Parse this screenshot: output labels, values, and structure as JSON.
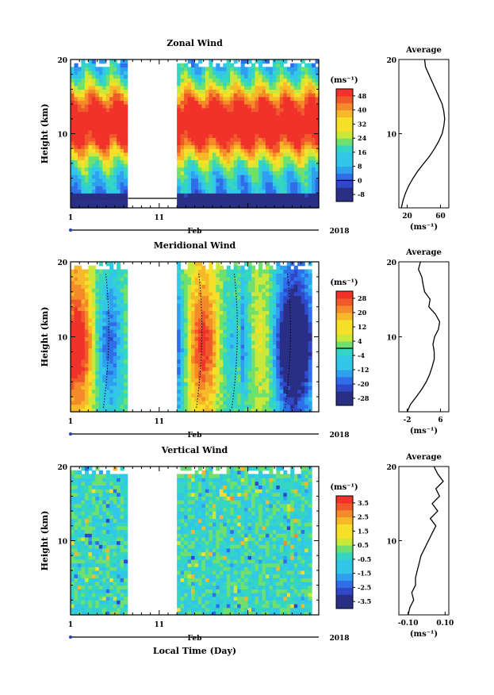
{
  "colors": {
    "palette": [
      "#2a2f86",
      "#3048c8",
      "#2f6ee8",
      "#2f9ff0",
      "#32c7e8",
      "#34d6c2",
      "#6fe06e",
      "#c9e83a",
      "#f6e02a",
      "#f7b82a",
      "#f48a28",
      "#f05a2a",
      "#f0322a"
    ],
    "missing": "#ffffff",
    "contour": "#000000"
  },
  "xaxis_common": {
    "tick_labels": [
      "1",
      "11"
    ],
    "month": "Feb",
    "year": "2018"
  },
  "xlabel_bottom": "Local Time (Day)",
  "colorbar_unit": "(ms⁻¹)",
  "profile_title": "Average",
  "chart_data": [
    {
      "type": "heatmap",
      "title": "Zonal Wind",
      "ylabel": "Height (km)",
      "ylim": [
        0,
        20
      ],
      "yticks": [
        "20",
        "10"
      ],
      "x_range_days": [
        1,
        29
      ],
      "data_gap_days": [
        7.5,
        13
      ],
      "colorbar": {
        "labels": [
          "48",
          "40",
          "32",
          "24",
          "16",
          "8",
          "0",
          "-8"
        ],
        "range": [
          -12,
          52
        ],
        "zero_line": 0
      },
      "description_values": {
        "jet_core_ms": 52,
        "surface_ms": 0,
        "top_ms": 20
      }
    },
    {
      "type": "line",
      "title": "Average",
      "xlabel": "(ms⁻¹)",
      "xticks": [
        "20",
        "60"
      ],
      "xlim": [
        10,
        70
      ],
      "ylim": [
        0,
        20
      ],
      "yticks": [
        "20",
        "10"
      ],
      "x": [
        13,
        15,
        18,
        22,
        27,
        33,
        40,
        47,
        53,
        58,
        62,
        64,
        65,
        64,
        62,
        58,
        54,
        50,
        46,
        42,
        41
      ],
      "y": [
        0,
        1,
        2,
        3,
        4,
        5,
        6,
        7,
        8,
        9,
        10,
        11,
        12,
        13,
        14,
        15,
        16,
        17,
        18,
        19,
        20
      ]
    },
    {
      "type": "heatmap",
      "title": "Meridional Wind",
      "ylabel": "Height (km)",
      "ylim": [
        0,
        20
      ],
      "yticks": [
        "20",
        "10"
      ],
      "x_range_days": [
        1,
        29
      ],
      "data_gap_days": [
        7.5,
        13
      ],
      "colorbar": {
        "labels": [
          "28",
          "20",
          "12",
          "4",
          "-4",
          "-12",
          "-20",
          "-28"
        ],
        "range": [
          -32,
          32
        ],
        "zero_line": 0
      }
    },
    {
      "type": "line",
      "title": "Average",
      "xlabel": "(ms⁻¹)",
      "xticks": [
        "-2",
        "6"
      ],
      "xlim": [
        -4,
        8
      ],
      "ylim": [
        0,
        20
      ],
      "yticks": [
        "20",
        "10"
      ],
      "x": [
        -2.0,
        -1.2,
        0.2,
        1.5,
        2.6,
        3.4,
        4.0,
        4.5,
        4.5,
        4.2,
        4.6,
        5.5,
        5.8,
        4.8,
        3.2,
        3.5,
        2.2,
        1.8,
        1.5,
        0.7,
        1.2
      ],
      "y": [
        0,
        1,
        2,
        3,
        4,
        5,
        6,
        7,
        8,
        9,
        10,
        11,
        12,
        13,
        14,
        15,
        16,
        17,
        18,
        19,
        20
      ]
    },
    {
      "type": "heatmap",
      "title": "Vertical Wind",
      "ylabel": "Height (km)",
      "ylim": [
        0,
        20
      ],
      "yticks": [
        "20",
        "10"
      ],
      "x_range_days": [
        1,
        29
      ],
      "data_gap_days": [
        7.5,
        13
      ],
      "colorbar": {
        "labels": [
          "3.5",
          "2.5",
          "1.5",
          "0.5",
          "-0.5",
          "-1.5",
          "-2.5",
          "-3.5"
        ],
        "range": [
          -4,
          4
        ]
      }
    },
    {
      "type": "line",
      "title": "Average",
      "xlabel": "(ms⁻¹)",
      "xticks": [
        "-0.10",
        "0.10"
      ],
      "xlim": [
        -0.15,
        0.12
      ],
      "ylim": [
        0,
        20
      ],
      "yticks": [
        "20",
        "10"
      ],
      "x": [
        -0.1,
        -0.09,
        -0.07,
        -0.08,
        -0.06,
        -0.06,
        -0.05,
        -0.04,
        -0.03,
        -0.01,
        0.01,
        0.03,
        0.05,
        0.02,
        0.06,
        0.03,
        0.07,
        0.05,
        0.09,
        0.06,
        0.04
      ],
      "y": [
        0,
        1,
        2,
        3,
        4,
        5,
        6,
        7,
        8,
        9,
        10,
        11,
        12,
        13,
        14,
        15,
        16,
        17,
        18,
        19,
        20
      ]
    }
  ]
}
